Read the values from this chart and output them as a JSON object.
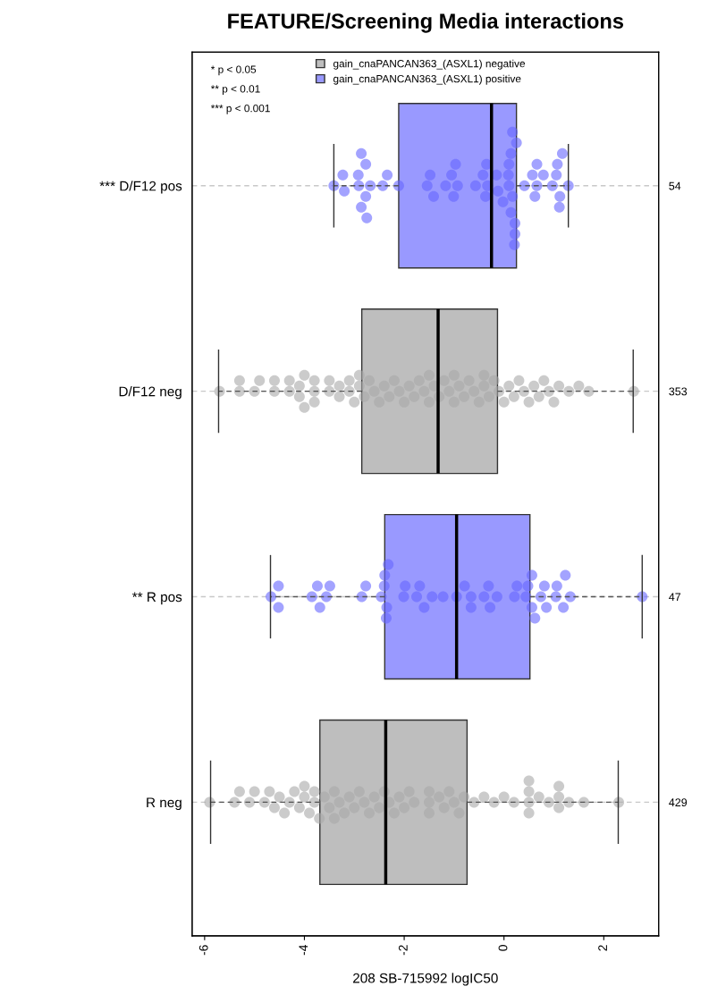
{
  "chart_data": {
    "type": "box",
    "orientation": "horizontal",
    "title": "FEATURE/Screening Media interactions",
    "xlabel": "208 SB-715992 logIC50",
    "categories": [
      "*** D/F12 pos",
      "D/F12 neg",
      "** R pos",
      "R neg"
    ],
    "y2_categories": [
      "54",
      "353",
      "47",
      "429"
    ],
    "xlim": [
      -6.25,
      3.1
    ],
    "xticks": [
      -6,
      -4,
      -2,
      0,
      2
    ],
    "grid": "y",
    "legend": "top",
    "annotations": [
      "* p < 0.05",
      "** p < 0.01",
      "*** p < 0.001"
    ],
    "series": [
      {
        "name": "gain_cnaPANCAN363_(ASXL1) negative",
        "color": "#bebebe",
        "boxes": [
          null,
          {
            "low": -5.72,
            "q1": -2.85,
            "median": -1.32,
            "q3": -0.13,
            "high": 2.59
          },
          null,
          {
            "low": -5.88,
            "q1": -3.69,
            "median": -2.37,
            "q3": -0.74,
            "high": 2.29
          }
        ]
      },
      {
        "name": "gain_cnaPANCAN363_(ASXL1) positive",
        "color": "#9999ff",
        "boxes": [
          {
            "low": -3.41,
            "q1": -2.11,
            "median": -0.25,
            "q3": 0.25,
            "high": 1.29
          },
          null,
          {
            "low": -4.68,
            "q1": -2.39,
            "median": -0.95,
            "q3": 0.52,
            "high": 2.77
          },
          null
        ]
      },
      {
        "type": "scatter",
        "color": "#a9a9a9",
        "x": [
          "D/F12 neg",
          "D/F12 neg",
          "D/F12 neg",
          "D/F12 neg",
          "D/F12 neg",
          "D/F12 neg",
          "D/F12 neg",
          "D/F12 neg",
          "D/F12 neg",
          "D/F12 neg",
          "D/F12 neg",
          "D/F12 neg",
          "D/F12 neg",
          "D/F12 neg",
          "D/F12 neg",
          "D/F12 neg",
          "D/F12 neg",
          "D/F12 neg",
          "D/F12 neg",
          "D/F12 neg",
          "D/F12 neg",
          "D/F12 neg",
          "D/F12 neg",
          "D/F12 neg",
          "D/F12 neg",
          "D/F12 neg",
          "D/F12 neg",
          "D/F12 neg",
          "D/F12 neg",
          "D/F12 neg",
          "D/F12 neg",
          "D/F12 neg",
          "D/F12 neg",
          "D/F12 neg",
          "D/F12 neg",
          "D/F12 neg",
          "D/F12 neg",
          "D/F12 neg",
          "D/F12 neg",
          "D/F12 neg",
          "D/F12 neg",
          "D/F12 neg",
          "D/F12 neg",
          "D/F12 neg",
          "D/F12 neg",
          "D/F12 neg",
          "D/F12 neg",
          "D/F12 neg",
          "D/F12 neg",
          "D/F12 neg",
          "D/F12 neg",
          "D/F12 neg",
          "D/F12 neg",
          "D/F12 neg",
          "D/F12 neg",
          "D/F12 neg",
          "D/F12 neg",
          "D/F12 neg",
          "D/F12 neg",
          "D/F12 neg",
          "D/F12 neg",
          "D/F12 neg",
          "D/F12 neg",
          "D/F12 neg",
          "D/F12 neg",
          "D/F12 neg",
          "D/F12 neg",
          "D/F12 neg",
          "D/F12 neg",
          "D/F12 neg",
          "D/F12 neg",
          "D/F12 neg"
        ],
        "values": [
          -5.7,
          -5.3,
          -5.3,
          -5.0,
          -4.9,
          -4.6,
          -4.6,
          -4.3,
          -4.3,
          -4.1,
          -4.1,
          -4.0,
          -4.0,
          -3.8,
          -3.8,
          -3.8,
          -3.5,
          -3.5,
          -3.3,
          -3.3,
          -3.1,
          -3.1,
          -3.0,
          -2.9,
          -2.9,
          -2.8,
          -2.7,
          -2.6,
          -2.5,
          -2.4,
          -2.3,
          -2.2,
          -2.1,
          -2.0,
          -1.9,
          -1.8,
          -1.7,
          -1.6,
          -1.5,
          -1.5,
          -1.4,
          -1.3,
          -1.2,
          -1.1,
          -1.0,
          -1.0,
          -0.9,
          -0.8,
          -0.7,
          -0.6,
          -0.5,
          -0.4,
          -0.4,
          -0.3,
          -0.2,
          -0.1,
          0.0,
          0.1,
          0.2,
          0.3,
          0.4,
          0.5,
          0.6,
          0.7,
          0.8,
          0.9,
          1.0,
          1.1,
          1.3,
          1.5,
          1.7,
          2.6
        ]
      },
      {
        "type": "scatter",
        "color": "#a9a9a9",
        "x": [
          "R neg",
          "R neg",
          "R neg",
          "R neg",
          "R neg",
          "R neg",
          "R neg",
          "R neg",
          "R neg",
          "R neg",
          "R neg",
          "R neg",
          "R neg",
          "R neg",
          "R neg",
          "R neg",
          "R neg",
          "R neg",
          "R neg",
          "R neg",
          "R neg",
          "R neg",
          "R neg",
          "R neg",
          "R neg",
          "R neg",
          "R neg",
          "R neg",
          "R neg",
          "R neg",
          "R neg",
          "R neg",
          "R neg",
          "R neg",
          "R neg",
          "R neg",
          "R neg",
          "R neg",
          "R neg",
          "R neg",
          "R neg",
          "R neg",
          "R neg",
          "R neg",
          "R neg",
          "R neg",
          "R neg",
          "R neg",
          "R neg",
          "R neg",
          "R neg",
          "R neg",
          "R neg",
          "R neg",
          "R neg",
          "R neg",
          "R neg",
          "R neg",
          "R neg",
          "R neg",
          "R neg",
          "R neg",
          "R neg",
          "R neg",
          "R neg"
        ],
        "values": [
          -5.9,
          -5.4,
          -5.3,
          -5.1,
          -5.0,
          -4.8,
          -4.7,
          -4.6,
          -4.5,
          -4.4,
          -4.3,
          -4.2,
          -4.1,
          -4.0,
          -4.0,
          -3.9,
          -3.8,
          -3.8,
          -3.7,
          -3.6,
          -3.5,
          -3.4,
          -3.4,
          -3.3,
          -3.2,
          -3.1,
          -3.0,
          -2.9,
          -2.8,
          -2.7,
          -2.6,
          -2.5,
          -2.4,
          -2.3,
          -2.2,
          -2.1,
          -2.0,
          -1.9,
          -1.8,
          -1.5,
          -1.5,
          -1.5,
          -1.3,
          -1.2,
          -1.1,
          -1.0,
          -0.9,
          -0.8,
          -0.6,
          -0.4,
          -0.2,
          0.0,
          0.2,
          0.5,
          0.5,
          0.5,
          0.5,
          0.7,
          0.9,
          1.1,
          1.1,
          1.1,
          1.3,
          1.6,
          2.3
        ]
      },
      {
        "type": "scatter",
        "color": "#6666ff",
        "x": [
          "*** D/F12 pos",
          "*** D/F12 pos",
          "*** D/F12 pos",
          "*** D/F12 pos",
          "*** D/F12 pos",
          "*** D/F12 pos",
          "*** D/F12 pos",
          "*** D/F12 pos",
          "*** D/F12 pos",
          "*** D/F12 pos",
          "*** D/F12 pos",
          "*** D/F12 pos",
          "*** D/F12 pos",
          "*** D/F12 pos",
          "*** D/F12 pos",
          "*** D/F12 pos",
          "*** D/F12 pos",
          "*** D/F12 pos",
          "*** D/F12 pos",
          "*** D/F12 pos",
          "*** D/F12 pos",
          "*** D/F12 pos",
          "*** D/F12 pos",
          "*** D/F12 pos",
          "*** D/F12 pos",
          "*** D/F12 pos",
          "*** D/F12 pos",
          "*** D/F12 pos",
          "*** D/F12 pos",
          "*** D/F12 pos",
          "*** D/F12 pos",
          "*** D/F12 pos",
          "*** D/F12 pos",
          "*** D/F12 pos",
          "*** D/F12 pos",
          "*** D/F12 pos",
          "*** D/F12 pos",
          "*** D/F12 pos",
          "*** D/F12 pos",
          "*** D/F12 pos",
          "*** D/F12 pos",
          "*** D/F12 pos",
          "*** D/F12 pos",
          "*** D/F12 pos",
          "*** D/F12 pos",
          "*** D/F12 pos",
          "*** D/F12 pos",
          "*** D/F12 pos",
          "*** D/F12 pos",
          "*** D/F12 pos",
          "*** D/F12 pos",
          "*** D/F12 pos",
          "*** D/F12 pos",
          "*** D/F12 pos"
        ],
        "values": [
          -3.41,
          -3.23,
          -3.2,
          -2.91,
          -2.92,
          -2.77,
          -2.77,
          -2.86,
          -2.86,
          -2.75,
          -2.68,
          -2.43,
          -2.34,
          -2.11,
          -1.54,
          -1.48,
          -1.41,
          -1.17,
          -1.05,
          -0.93,
          -1.01,
          -0.97,
          -0.57,
          -0.42,
          -0.33,
          -0.37,
          -0.35,
          -0.15,
          -0.12,
          -0.02,
          0.1,
          0.09,
          0.1,
          0.17,
          0.14,
          0.14,
          0.22,
          0.25,
          0.22,
          0.17,
          0.21,
          0.41,
          0.57,
          0.66,
          0.62,
          0.66,
          0.79,
          0.97,
          1.05,
          1.12,
          1.07,
          1.11,
          1.17,
          1.29
        ]
      },
      {
        "type": "scatter",
        "color": "#6666ff",
        "x": [
          "** R pos",
          "** R pos",
          "** R pos",
          "** R pos",
          "** R pos",
          "** R pos",
          "** R pos",
          "** R pos",
          "** R pos",
          "** R pos",
          "** R pos",
          "** R pos",
          "** R pos",
          "** R pos",
          "** R pos",
          "** R pos",
          "** R pos",
          "** R pos",
          "** R pos",
          "** R pos",
          "** R pos",
          "** R pos",
          "** R pos",
          "** R pos",
          "** R pos",
          "** R pos",
          "** R pos",
          "** R pos",
          "** R pos",
          "** R pos",
          "** R pos",
          "** R pos",
          "** R pos",
          "** R pos",
          "** R pos",
          "** R pos",
          "** R pos",
          "** R pos",
          "** R pos",
          "** R pos",
          "** R pos",
          "** R pos",
          "** R pos",
          "** R pos",
          "** R pos",
          "** R pos",
          "** R pos"
        ],
        "values": [
          -4.67,
          -4.52,
          -4.52,
          -3.85,
          -3.74,
          -3.56,
          -3.69,
          -3.49,
          -2.85,
          -2.77,
          -2.46,
          -2.4,
          -2.35,
          -2.39,
          -2.36,
          -2.32,
          -2.01,
          -1.98,
          -1.75,
          -1.69,
          -1.6,
          -1.44,
          -1.22,
          -0.95,
          -0.79,
          -0.66,
          -0.66,
          -0.4,
          -0.31,
          -0.28,
          -0.14,
          0.21,
          0.26,
          0.44,
          0.48,
          0.56,
          0.56,
          0.62,
          0.74,
          0.81,
          0.85,
          1.04,
          1.06,
          1.19,
          1.23,
          1.33,
          2.77
        ]
      }
    ]
  }
}
